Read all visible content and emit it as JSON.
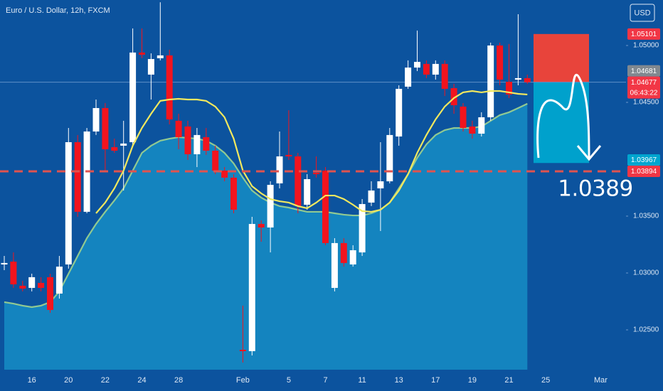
{
  "chart_data": {
    "type": "candlestick",
    "title": "Euro / U.S. Dollar, 12h, FXCM",
    "currency": "USD",
    "categories": [
      null,
      null,
      null,
      "16",
      null,
      null,
      null,
      "20",
      null,
      null,
      null,
      "22",
      null,
      null,
      null,
      "24",
      null,
      null,
      null,
      "28",
      null,
      null,
      null,
      null,
      null,
      null,
      "Feb",
      null,
      null,
      null,
      null,
      "5",
      null,
      null,
      null,
      "7",
      null,
      null,
      null,
      "11",
      null,
      null,
      null,
      "13",
      null,
      null,
      null,
      "17",
      null,
      null,
      null,
      "19",
      null,
      null,
      null,
      "21",
      null,
      null,
      null,
      "25",
      null,
      null,
      null,
      null,
      null,
      "Mar",
      null,
      null
    ],
    "open": [
      1.03075,
      1.031,
      1.02888,
      1.02869,
      1.02913,
      1.02963,
      1.02819,
      1.03075,
      1.0415,
      1.03538,
      1.04244,
      1.0445,
      1.04106,
      1.04119,
      1.0415,
      1.04938,
      1.04744,
      1.04888,
      1.04913,
      1.04338,
      1.04288,
      1.04044,
      1.04194,
      1.04075,
      1.039,
      1.03838,
      1.02325,
      1.02313,
      1.03431,
      1.034,
      1.03788,
      1.04038,
      1.04025,
      1.036,
      1.03881,
      1.039,
      1.02869,
      1.03263,
      1.03075,
      1.03181,
      1.03619,
      1.03744,
      1.03806,
      1.042,
      1.04638,
      1.04806,
      1.04838,
      1.04744,
      1.04838,
      1.04625,
      1.04463,
      1.04288,
      1.04225,
      1.04369,
      1.05,
      1.04681,
      1.047,
      1.04713,
      null,
      null,
      null,
      null,
      null,
      null,
      null,
      null,
      null,
      null
    ],
    "high": [
      1.0315,
      1.03181,
      1.02931,
      1.02994,
      1.02963,
      1.02994,
      1.0315,
      1.04275,
      1.04213,
      1.04275,
      1.04525,
      1.04494,
      1.04181,
      1.04338,
      1.0515,
      1.0515,
      1.04931,
      1.0538,
      1.04963,
      1.044,
      1.04338,
      1.04275,
      1.04275,
      1.04119,
      1.03931,
      1.03869,
      1.02713,
      1.03494,
      1.03463,
      1.03806,
      1.04244,
      1.04431,
      1.04056,
      1.03869,
      1.04025,
      1.03931,
      1.03306,
      1.03306,
      1.03244,
      1.0365,
      1.03806,
      1.0415,
      1.04275,
      1.0465,
      1.04869,
      1.05131,
      1.04869,
      1.04869,
      1.04869,
      1.04663,
      1.04494,
      1.04338,
      1.04413,
      1.05025,
      1.05025,
      1.05013,
      1.05275,
      1.04744,
      null,
      null,
      null,
      null,
      null,
      null,
      null,
      null,
      null,
      null
    ],
    "low": [
      1.03025,
      1.02869,
      1.02838,
      1.02838,
      1.02838,
      1.0265,
      1.02775,
      1.03038,
      1.03494,
      1.03525,
      1.04213,
      1.039,
      1.04056,
      1.03725,
      1.04119,
      1.04888,
      1.04525,
      1.04869,
      1.04306,
      1.04088,
      1.03994,
      1.03931,
      1.04038,
      1.03869,
      1.03806,
      1.03525,
      1.02213,
      1.02275,
      1.03275,
      1.03181,
      1.03744,
      1.03994,
      1.03525,
      1.03556,
      1.03838,
      1.03244,
      1.02838,
      1.03056,
      1.03056,
      1.0315,
      1.03588,
      1.03369,
      1.03788,
      1.04119,
      1.04619,
      1.04775,
      1.04713,
      1.047,
      1.04556,
      1.044,
      1.04244,
      1.04181,
      1.042,
      1.04338,
      1.0465,
      1.04538,
      1.0465,
      1.04663,
      null,
      null,
      null,
      null,
      null,
      null,
      null,
      null,
      null,
      null
    ],
    "close": [
      1.03088,
      1.029,
      1.02863,
      1.02963,
      1.02869,
      1.02675,
      1.03056,
      1.0415,
      1.03538,
      1.04244,
      1.0445,
      1.04088,
      1.04075,
      1.04138,
      1.04938,
      1.04919,
      1.04881,
      1.04913,
      1.0435,
      1.04194,
      1.04044,
      1.04213,
      1.04075,
      1.039,
      1.03838,
      1.03556,
      1.02313,
      1.03431,
      1.034,
      1.03775,
      1.04025,
      1.04025,
      1.03588,
      1.03825,
      1.03869,
      1.03263,
      1.03263,
      1.03088,
      1.032,
      1.03606,
      1.03725,
      1.03806,
      1.04213,
      1.04619,
      1.04806,
      1.04856,
      1.04744,
      1.04838,
      1.04619,
      1.04475,
      1.04275,
      1.04225,
      1.04369,
      1.05,
      1.047,
      1.04569,
      1.04713,
      1.04677,
      null,
      null,
      null,
      null,
      null,
      null,
      null,
      null,
      null,
      null
    ],
    "up_color": "#ffffff",
    "down_color": "#f2141e",
    "overlays": [
      {
        "kind": "area",
        "color": "#a8d98c",
        "fill": "#1589c2",
        "values": [
          1.02744,
          1.02731,
          1.02713,
          1.027,
          1.02713,
          1.02744,
          1.02838,
          1.02994,
          1.0315,
          1.03306,
          1.03431,
          1.03538,
          1.03638,
          1.03744,
          1.039,
          1.04056,
          1.04119,
          1.04163,
          1.04181,
          1.04194,
          1.04188,
          1.04181,
          1.04163,
          1.04119,
          1.04056,
          1.03963,
          1.03838,
          1.03725,
          1.03663,
          1.03619,
          1.03588,
          1.03575,
          1.03556,
          1.03538,
          1.03538,
          1.03538,
          1.03525,
          1.03513,
          1.03506,
          1.03506,
          1.03525,
          1.03556,
          1.03619,
          1.03744,
          1.03869,
          1.04013,
          1.04131,
          1.04213,
          1.04256,
          1.04275,
          1.04275,
          1.04275,
          1.04288,
          1.04338,
          1.04388,
          1.04413,
          1.0445,
          1.04488,
          null,
          null,
          null,
          null,
          null,
          null,
          null,
          null,
          null,
          null
        ]
      },
      {
        "kind": "line",
        "color": "#f2e85e",
        "values": [
          null,
          null,
          null,
          null,
          null,
          null,
          null,
          null,
          null,
          null,
          1.03525,
          1.03619,
          1.03744,
          1.039,
          1.04119,
          1.04275,
          1.044,
          1.04513,
          1.04525,
          1.04531,
          1.04525,
          1.04525,
          1.04513,
          1.04463,
          1.04369,
          1.04181,
          1.039,
          1.03763,
          1.037,
          1.0365,
          1.03631,
          1.03619,
          1.03588,
          1.03569,
          1.03619,
          1.03681,
          1.03681,
          1.0365,
          1.036,
          1.03544,
          1.03538,
          1.03556,
          1.03619,
          1.03725,
          1.03869,
          1.04056,
          1.04213,
          1.0435,
          1.04463,
          1.04538,
          1.04588,
          1.046,
          1.04588,
          1.046,
          1.046,
          1.04588,
          1.04575,
          1.04569,
          null,
          null,
          null,
          null,
          null,
          null,
          null,
          null,
          null,
          null
        ]
      }
    ],
    "position": {
      "stop": 1.05101,
      "entry": 1.04677,
      "target": 1.03967,
      "stop_color": "#f44336",
      "target_color": "#00a5cf"
    },
    "level": {
      "value": 1.03894,
      "color": "#e0534f",
      "label": "1.0389"
    },
    "price_labels": [
      {
        "value": 1.05101,
        "color": "#f23645"
      },
      {
        "value": 1.04681,
        "color": "#808890"
      },
      {
        "value": 1.04677,
        "color": "#f23645",
        "countdown": "06:43:22"
      },
      {
        "value": 1.03967,
        "color": "#00a5cf"
      },
      {
        "value": 1.03894,
        "color": "#f23645"
      }
    ],
    "ylim": [
      1.0215,
      1.054
    ],
    "yticks": [
      {
        "value": 1.025,
        "label": "1.02500"
      },
      {
        "value": 1.03,
        "label": "1.03000"
      },
      {
        "value": 1.035,
        "label": "1.03500"
      },
      {
        "value": 1.045,
        "label": "1.04500"
      },
      {
        "value": 1.05,
        "label": "1.05000"
      }
    ]
  }
}
